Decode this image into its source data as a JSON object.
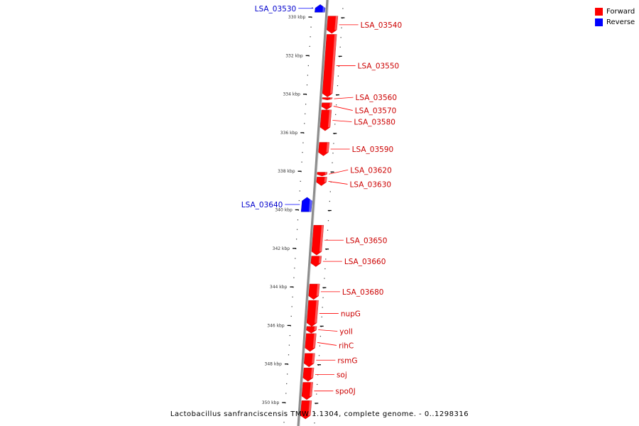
{
  "colors": {
    "forward": "#ff0000",
    "reverse": "#0000ff",
    "backbone": "#8c8c8c",
    "label_forward": "#cc0000",
    "label_reverse": "#0000cc"
  },
  "legend": [
    {
      "label": "Forward",
      "color": "#ff0000"
    },
    {
      "label": "Reverse",
      "color": "#0000ff"
    }
  ],
  "caption": "Lactobacillus sanfranciscensis TMW 1.1304, complete genome. - 0..1298316",
  "ticks": [
    {
      "label": "330 kbp",
      "kbp": 330
    },
    {
      "label": "332 kbp",
      "kbp": 332
    },
    {
      "label": "334 kbp",
      "kbp": 334
    },
    {
      "label": "336 kbp",
      "kbp": 336
    },
    {
      "label": "338 kbp",
      "kbp": 338
    },
    {
      "label": "340 kbp",
      "kbp": 340
    },
    {
      "label": "342 kbp",
      "kbp": 342
    },
    {
      "label": "344 kbp",
      "kbp": 344
    },
    {
      "label": "346 kbp",
      "kbp": 346
    },
    {
      "label": "348 kbp",
      "kbp": 348
    },
    {
      "label": "350 kbp",
      "kbp": 350
    }
  ],
  "genes": [
    {
      "name": "LSA_03530",
      "strand": "reverse",
      "start_kbp": 329.35,
      "end_kbp": 329.75
    },
    {
      "name": "LSA_03540",
      "strand": "forward",
      "start_kbp": 329.95,
      "end_kbp": 330.85
    },
    {
      "name": "LSA_03550",
      "strand": "forward",
      "start_kbp": 330.9,
      "end_kbp": 334.15
    },
    {
      "name": "LSA_03560",
      "strand": "forward",
      "start_kbp": 334.18,
      "end_kbp": 334.3
    },
    {
      "name": "LSA_03570",
      "strand": "forward",
      "start_kbp": 334.45,
      "end_kbp": 334.8
    },
    {
      "name": "LSA_03580",
      "strand": "forward",
      "start_kbp": 334.82,
      "end_kbp": 335.9
    },
    {
      "name": "LSA_03590",
      "strand": "forward",
      "start_kbp": 336.5,
      "end_kbp": 337.2
    },
    {
      "name": "LSA_03620",
      "strand": "forward",
      "start_kbp": 338.05,
      "end_kbp": 338.25
    },
    {
      "name": "LSA_03630",
      "strand": "forward",
      "start_kbp": 338.3,
      "end_kbp": 338.75
    },
    {
      "name": "LSA_03640",
      "strand": "reverse",
      "start_kbp": 339.35,
      "end_kbp": 340.1
    },
    {
      "name": "LSA_03650",
      "strand": "forward",
      "start_kbp": 340.8,
      "end_kbp": 342.35
    },
    {
      "name": "LSA_03660",
      "strand": "forward",
      "start_kbp": 342.4,
      "end_kbp": 342.95
    },
    {
      "name": "LSA_03680",
      "strand": "forward",
      "start_kbp": 343.85,
      "end_kbp": 344.65
    },
    {
      "name": "nupG",
      "strand": "forward",
      "start_kbp": 344.7,
      "end_kbp": 346.05
    },
    {
      "name": "yolI",
      "strand": "forward",
      "start_kbp": 346.05,
      "end_kbp": 346.4
    },
    {
      "name": "rihC",
      "strand": "forward",
      "start_kbp": 346.42,
      "end_kbp": 347.35
    },
    {
      "name": "rsmG",
      "strand": "forward",
      "start_kbp": 347.45,
      "end_kbp": 348.15
    },
    {
      "name": "soj",
      "strand": "forward",
      "start_kbp": 348.2,
      "end_kbp": 348.9
    },
    {
      "name": "spo0J",
      "strand": "forward",
      "start_kbp": 348.95,
      "end_kbp": 349.85
    },
    {
      "name": "",
      "strand": "forward",
      "start_kbp": 349.9,
      "end_kbp": 350.85
    }
  ]
}
